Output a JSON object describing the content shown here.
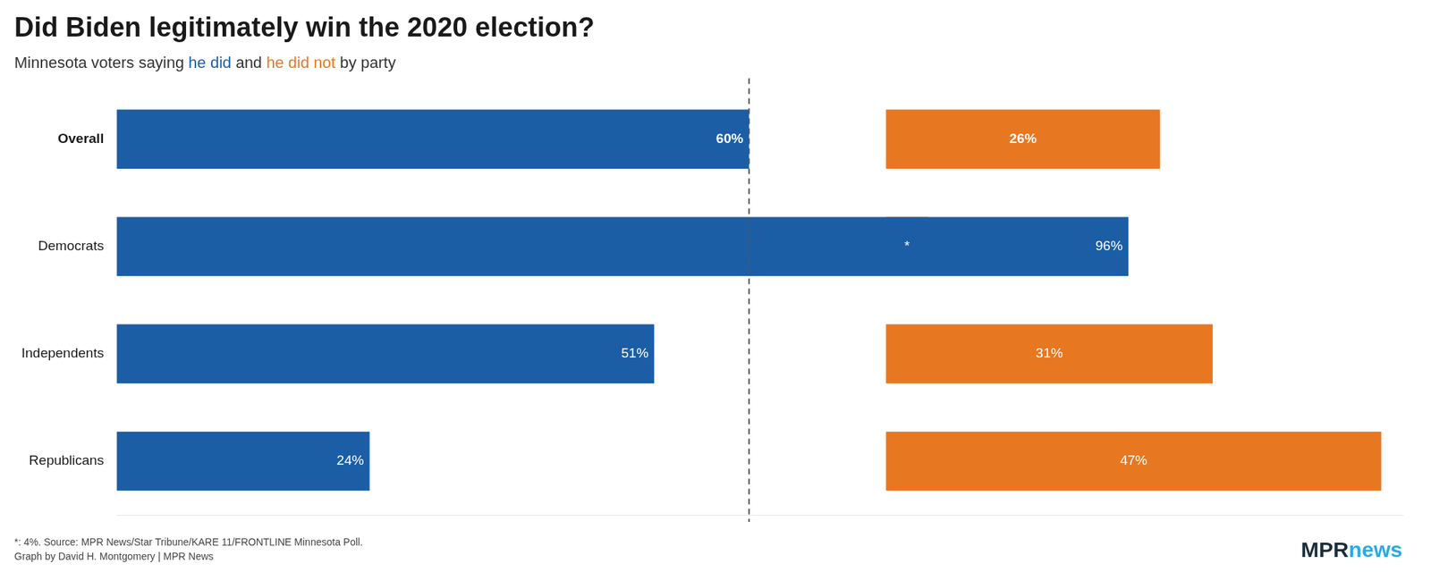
{
  "chart_data": {
    "type": "bar",
    "orientation": "horizontal",
    "title": "Did Biden legitimately win the 2020 election?",
    "subtitle": "Minnesota voters saying he did and he did not by party",
    "categories": [
      "Overall",
      "Democrats",
      "Independents",
      "Republicans"
    ],
    "series": [
      {
        "name": "he did",
        "color": "#1B5EA6",
        "values": [
          60,
          96,
          51,
          24
        ],
        "value_labels": [
          "60%",
          "96%",
          "51%",
          "24%"
        ]
      },
      {
        "name": "he did not",
        "color": "#E87722",
        "base": 73,
        "values": [
          26,
          4,
          31,
          47
        ],
        "value_labels": [
          "26%",
          "*",
          "31%",
          "47%"
        ]
      }
    ],
    "xlim": [
      0,
      122
    ],
    "data_labels": true,
    "tick_labels": "y",
    "grid": false,
    "annotations": [
      {
        "x": 60,
        "line_style": "dashed"
      },
      {
        "text": "MPR",
        "color": "#1a2e3b"
      },
      {
        "text": "news",
        "color": "#29ABE2"
      }
    ],
    "footnote": "*: 4%. Source: MPR News/Star Tribune/KARE 11/FRONTLINE Minnesota Poll.\nGraph by David H. Montgomery | MPR News"
  }
}
